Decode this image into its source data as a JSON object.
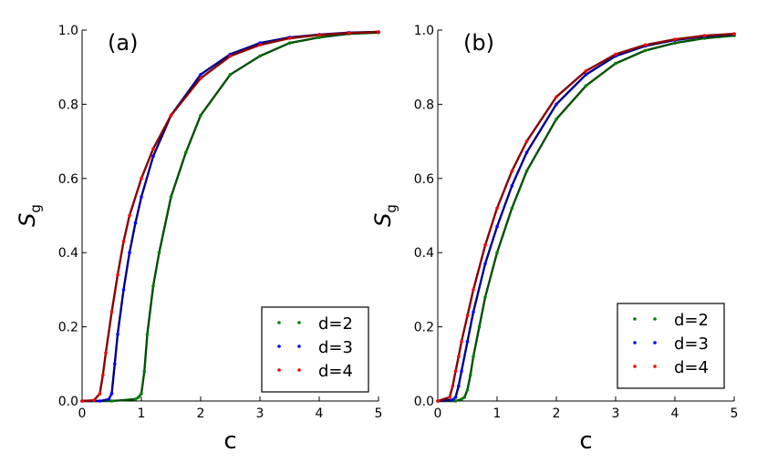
{
  "chart_data": [
    {
      "type": "line",
      "panel_label": "(a)",
      "xlabel": "c",
      "ylabel": "S",
      "ylabel_sub": "g",
      "xlim": [
        0,
        5
      ],
      "ylim": [
        0,
        1
      ],
      "xticks": [
        0,
        1,
        2,
        3,
        4,
        5
      ],
      "yticks": [
        0.0,
        0.2,
        0.4,
        0.6,
        0.8,
        1.0
      ],
      "grid": false,
      "legend_position": "bottom-right",
      "series": [
        {
          "name": "d=2",
          "color": "#008000",
          "line_color": "#005000",
          "x": [
            0,
            0.5,
            0.9,
            0.95,
            1.0,
            1.05,
            1.1,
            1.2,
            1.3,
            1.5,
            1.75,
            2.0,
            2.5,
            3.0,
            3.5,
            4.0,
            4.5,
            5.0
          ],
          "y": [
            0.0,
            0.0,
            0.005,
            0.01,
            0.02,
            0.08,
            0.18,
            0.31,
            0.4,
            0.55,
            0.67,
            0.77,
            0.88,
            0.93,
            0.965,
            0.98,
            0.99,
            0.993
          ]
        },
        {
          "name": "d=3",
          "color": "#0000ff",
          "line_color": "#00008b",
          "x": [
            0,
            0.3,
            0.45,
            0.5,
            0.55,
            0.6,
            0.7,
            0.8,
            0.9,
            1.0,
            1.2,
            1.5,
            2.0,
            2.5,
            3.0,
            3.5,
            4.0,
            4.5,
            5.0
          ],
          "y": [
            0.0,
            0.0,
            0.005,
            0.02,
            0.1,
            0.18,
            0.3,
            0.4,
            0.48,
            0.55,
            0.66,
            0.77,
            0.88,
            0.935,
            0.965,
            0.98,
            0.988,
            0.993,
            0.995
          ]
        },
        {
          "name": "d=4",
          "color": "#ff0000",
          "line_color": "#8b0000",
          "x": [
            0,
            0.2,
            0.3,
            0.35,
            0.4,
            0.5,
            0.6,
            0.7,
            0.8,
            1.0,
            1.2,
            1.5,
            2.0,
            2.5,
            3.0,
            3.5,
            4.0,
            4.5,
            5.0
          ],
          "y": [
            0.0,
            0.002,
            0.02,
            0.07,
            0.13,
            0.24,
            0.34,
            0.43,
            0.5,
            0.6,
            0.68,
            0.77,
            0.87,
            0.93,
            0.96,
            0.978,
            0.987,
            0.992,
            0.995
          ]
        }
      ]
    },
    {
      "type": "line",
      "panel_label": "(b)",
      "xlabel": "c",
      "ylabel": "S",
      "ylabel_sub": "g",
      "xlim": [
        0,
        5
      ],
      "ylim": [
        0,
        1
      ],
      "xticks": [
        0,
        1,
        2,
        3,
        4,
        5
      ],
      "yticks": [
        0.0,
        0.2,
        0.4,
        0.6,
        0.8,
        1.0
      ],
      "grid": false,
      "legend_position": "bottom-right",
      "series": [
        {
          "name": "d=2",
          "color": "#008000",
          "line_color": "#005000",
          "x": [
            0,
            0.3,
            0.4,
            0.45,
            0.5,
            0.55,
            0.6,
            0.7,
            0.8,
            1.0,
            1.25,
            1.5,
            2.0,
            2.5,
            3.0,
            3.5,
            4.0,
            4.5,
            5.0
          ],
          "y": [
            0.0,
            0.0,
            0.005,
            0.01,
            0.03,
            0.07,
            0.12,
            0.2,
            0.28,
            0.4,
            0.52,
            0.62,
            0.76,
            0.85,
            0.91,
            0.945,
            0.965,
            0.978,
            0.985
          ]
        },
        {
          "name": "d=3",
          "color": "#0000ff",
          "line_color": "#00008b",
          "x": [
            0,
            0.25,
            0.3,
            0.35,
            0.4,
            0.5,
            0.6,
            0.8,
            1.0,
            1.25,
            1.5,
            2.0,
            2.5,
            3.0,
            3.5,
            4.0,
            4.5,
            5.0
          ],
          "y": [
            0.0,
            0.003,
            0.01,
            0.04,
            0.08,
            0.16,
            0.24,
            0.37,
            0.47,
            0.58,
            0.67,
            0.8,
            0.88,
            0.93,
            0.957,
            0.973,
            0.983,
            0.989
          ]
        },
        {
          "name": "d=4",
          "color": "#ff0000",
          "line_color": "#8b0000",
          "x": [
            0,
            0.2,
            0.25,
            0.3,
            0.35,
            0.4,
            0.5,
            0.6,
            0.8,
            1.0,
            1.25,
            1.5,
            2.0,
            2.5,
            3.0,
            3.5,
            4.0,
            4.5,
            5.0
          ],
          "y": [
            0.0,
            0.01,
            0.04,
            0.08,
            0.12,
            0.16,
            0.23,
            0.3,
            0.42,
            0.52,
            0.62,
            0.7,
            0.82,
            0.89,
            0.935,
            0.96,
            0.975,
            0.985,
            0.99
          ]
        }
      ]
    }
  ]
}
